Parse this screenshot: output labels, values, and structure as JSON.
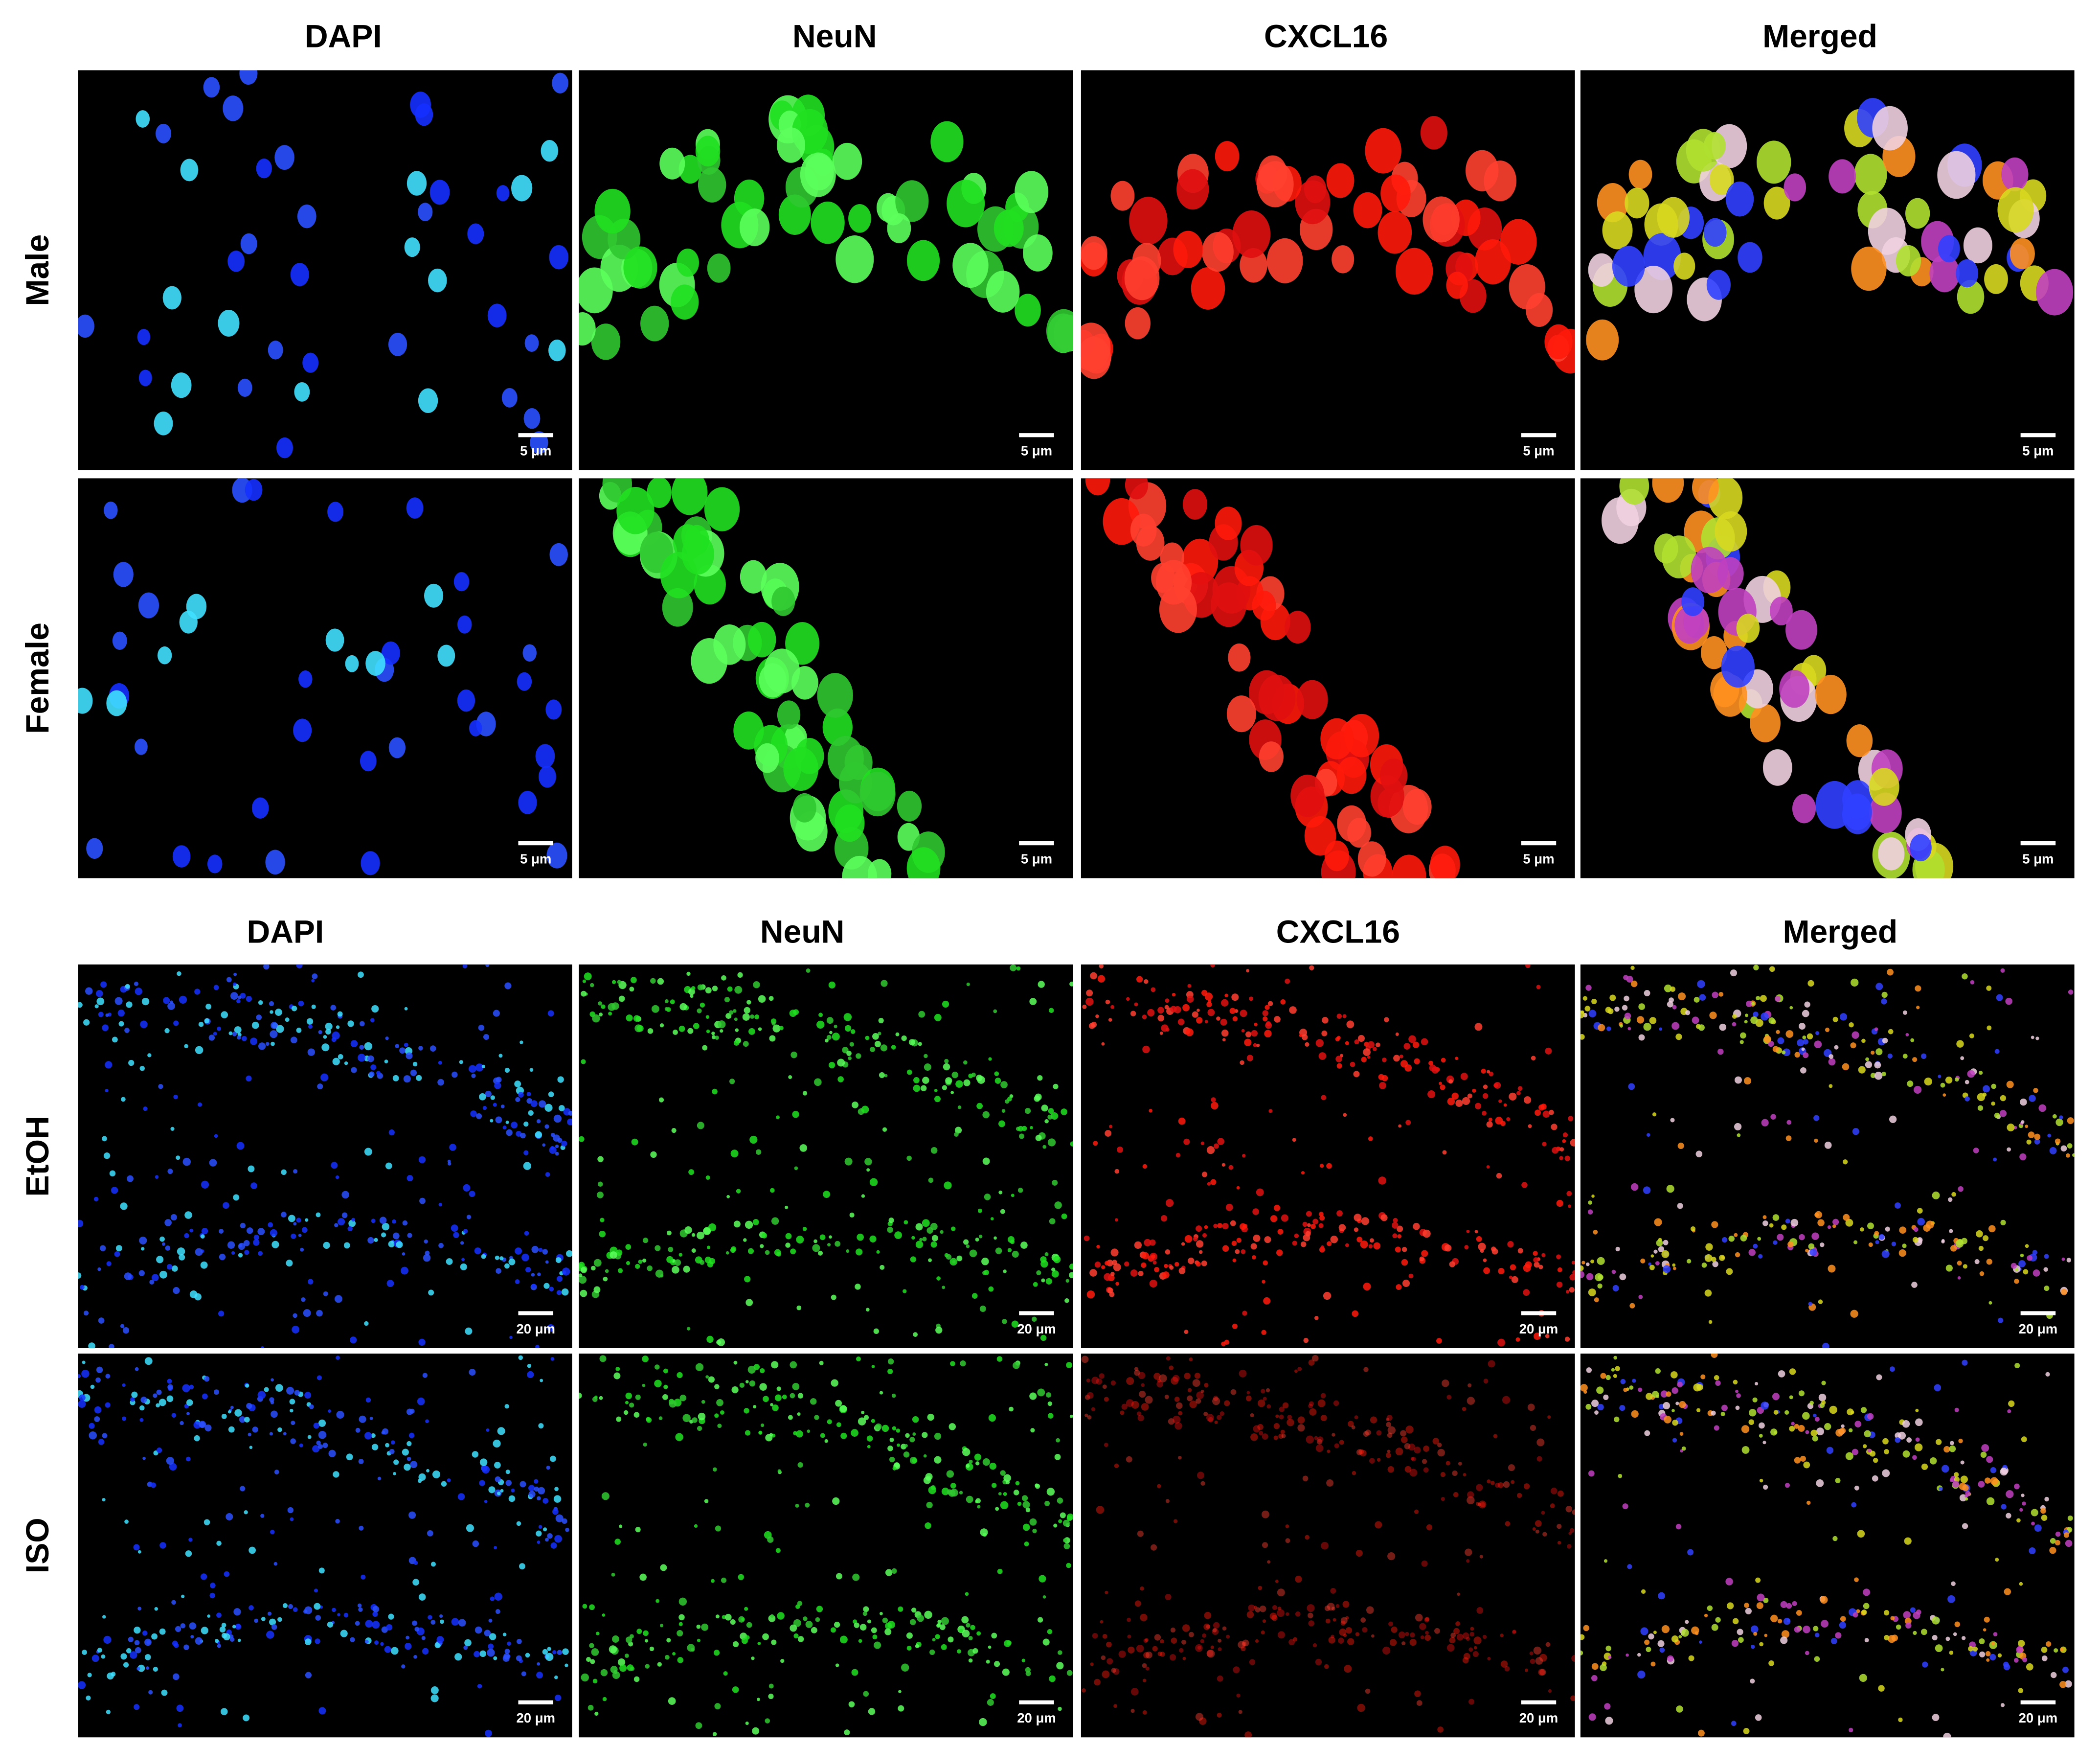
{
  "panel_a": {
    "columns": [
      "DAPI",
      "NeuN",
      "CXCL16",
      "Merged"
    ],
    "rows": [
      "Male",
      "Female"
    ],
    "scale_bar": "5 μm"
  },
  "panel_b": {
    "columns": [
      "DAPI",
      "NeuN",
      "CXCL16",
      "Merged"
    ],
    "rows": [
      "EtOH",
      "ISO"
    ],
    "scale_bar": "20 μm"
  }
}
